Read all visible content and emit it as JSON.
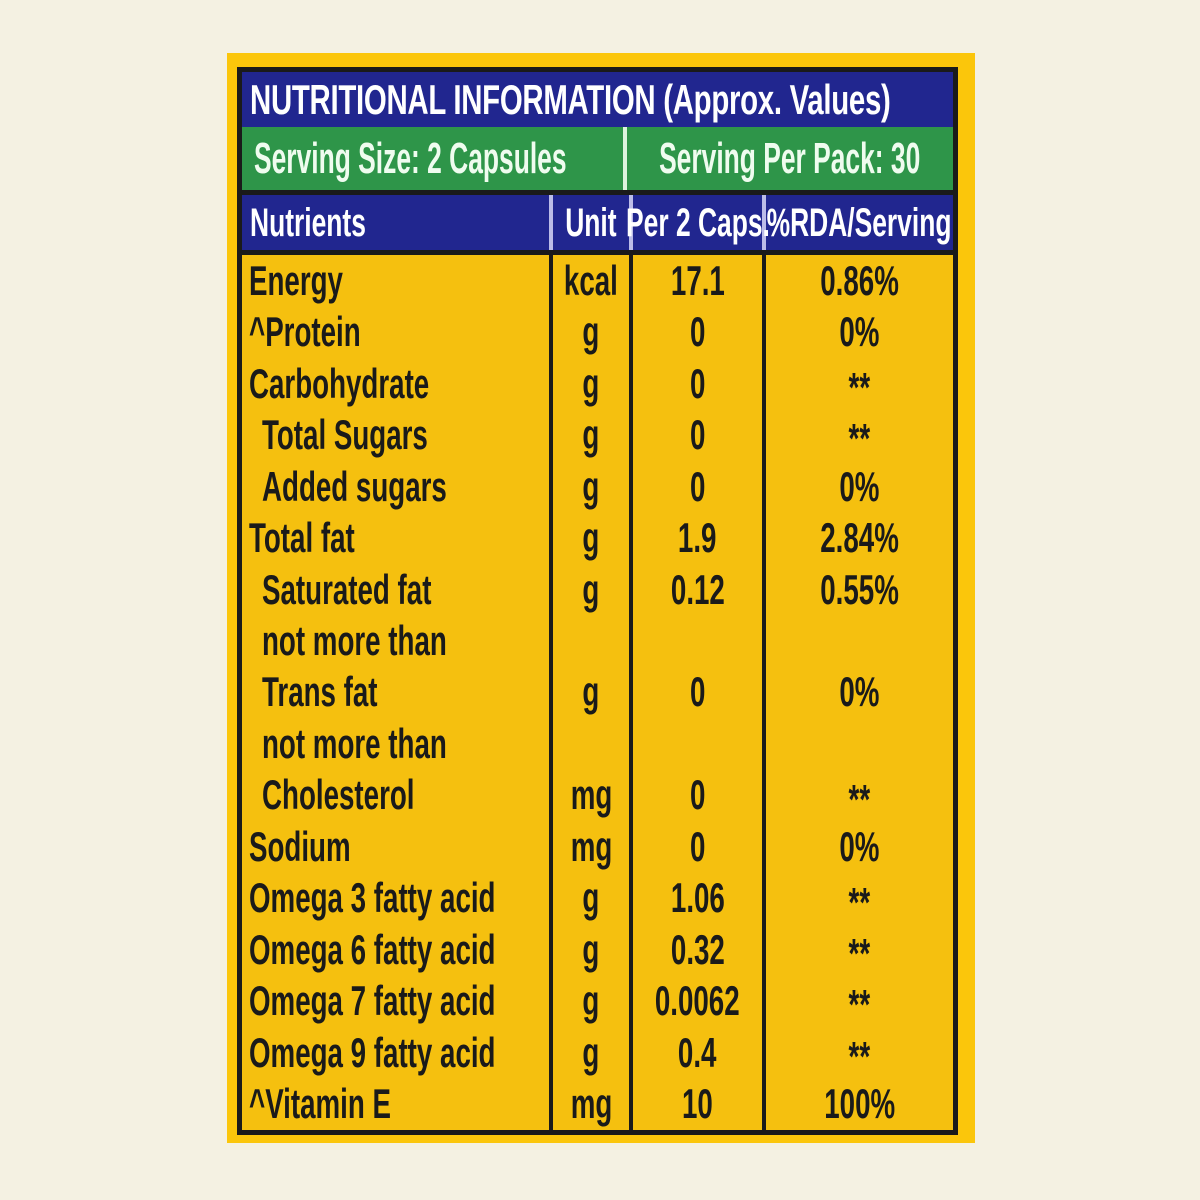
{
  "label": {
    "title": "NUTRITIONAL INFORMATION (Approx. Values)",
    "serving_size": "Serving Size: 2 Capsules",
    "serving_per_pack": "Serving Per Pack: 30",
    "columns": [
      "Nutrients",
      "Unit",
      "Per 2 Caps.",
      "%RDA/Serving"
    ],
    "rows": [
      {
        "nutrient": "Energy",
        "indent": 0,
        "unit": "kcal",
        "per_2_caps": "17.1",
        "rda_per_serving": "0.86%"
      },
      {
        "nutrient": "^Protein",
        "indent": 0,
        "unit": "g",
        "per_2_caps": "0",
        "rda_per_serving": "0%"
      },
      {
        "nutrient": "Carbohydrate",
        "indent": 0,
        "unit": "g",
        "per_2_caps": "0",
        "rda_per_serving": "**"
      },
      {
        "nutrient": "Total Sugars",
        "indent": 1,
        "unit": "g",
        "per_2_caps": "0",
        "rda_per_serving": "**"
      },
      {
        "nutrient": "Added sugars",
        "indent": 1,
        "unit": "g",
        "per_2_caps": "0",
        "rda_per_serving": "0%"
      },
      {
        "nutrient": "Total fat",
        "indent": 0,
        "unit": "g",
        "per_2_caps": "1.9",
        "rda_per_serving": "2.84%"
      },
      {
        "nutrient": "Saturated fat",
        "indent": 1,
        "unit": "g",
        "per_2_caps": "0.12",
        "rda_per_serving": "0.55%"
      },
      {
        "nutrient": "not more than",
        "indent": 1,
        "unit": "",
        "per_2_caps": "",
        "rda_per_serving": ""
      },
      {
        "nutrient": "Trans fat",
        "indent": 1,
        "unit": "g",
        "per_2_caps": "0",
        "rda_per_serving": "0%"
      },
      {
        "nutrient": "not more than",
        "indent": 1,
        "unit": "",
        "per_2_caps": "",
        "rda_per_serving": ""
      },
      {
        "nutrient": "Cholesterol",
        "indent": 1,
        "unit": "mg",
        "per_2_caps": "0",
        "rda_per_serving": "**"
      },
      {
        "nutrient": "Sodium",
        "indent": 0,
        "unit": "mg",
        "per_2_caps": "0",
        "rda_per_serving": "0%"
      },
      {
        "nutrient": "Omega 3 fatty acid",
        "indent": 0,
        "unit": "g",
        "per_2_caps": "1.06",
        "rda_per_serving": "**"
      },
      {
        "nutrient": "Omega 6 fatty acid",
        "indent": 0,
        "unit": "g",
        "per_2_caps": "0.32",
        "rda_per_serving": "**"
      },
      {
        "nutrient": "Omega 7 fatty acid",
        "indent": 0,
        "unit": "g",
        "per_2_caps": "0.0062",
        "rda_per_serving": "**"
      },
      {
        "nutrient": "Omega 9 fatty acid",
        "indent": 0,
        "unit": "g",
        "per_2_caps": "0.4",
        "rda_per_serving": "**"
      },
      {
        "nutrient": "^Vitamin E",
        "indent": 0,
        "unit": "mg",
        "per_2_caps": "10",
        "rda_per_serving": "100%"
      }
    ],
    "colors": {
      "page_bg": "#F4F1E2",
      "panel_yellow": "#FBC60B",
      "body_yellow": "#F5C00F",
      "header_blue": "#21268F",
      "serving_green": "#2E9549",
      "line_black": "#1A1A1A",
      "header_divider": "#BCBCE8",
      "serving_divider": "#DCF4DE",
      "serving_text": "#EFFCEF",
      "header_text": "#FFFFFF",
      "body_text": "#1A1A1A"
    }
  }
}
